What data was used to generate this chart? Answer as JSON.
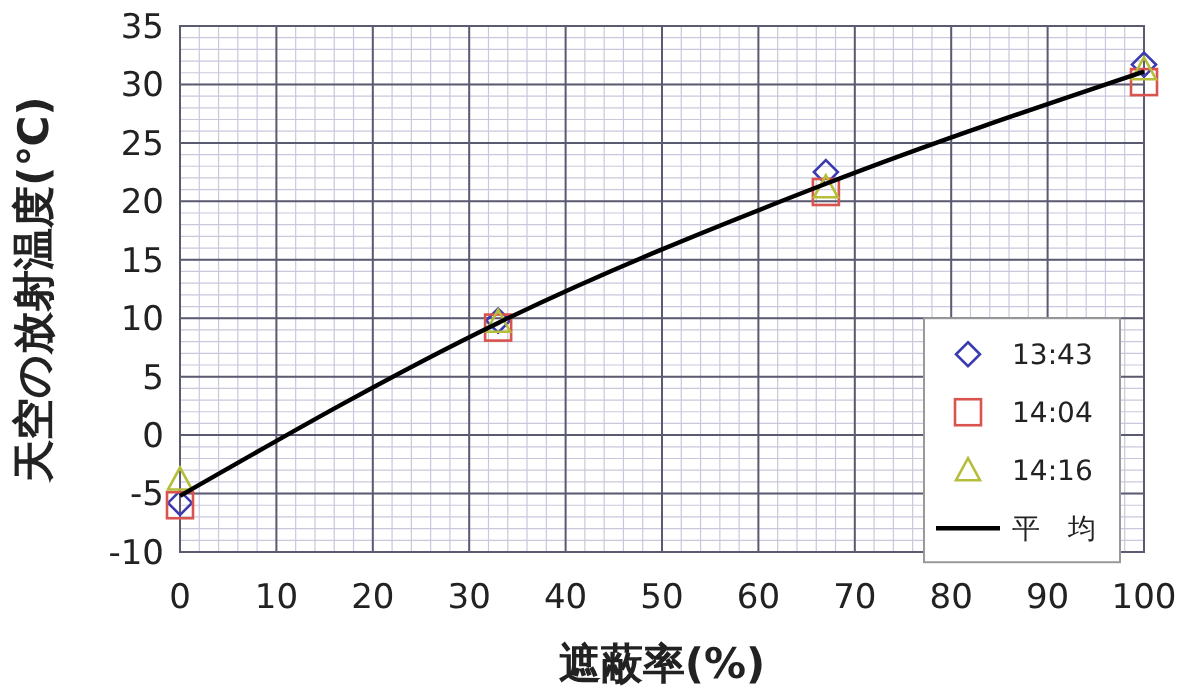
{
  "chart_data": {
    "type": "scatter",
    "xlabel": "遮蔽率(%)",
    "ylabel": "天空の放射温度(℃)",
    "x": [
      0,
      33,
      67,
      100
    ],
    "series": [
      {
        "name": "13:43",
        "color": "#3b3bb0",
        "marker": "diamond",
        "values": [
          -5.8,
          9.8,
          22.5,
          31.7
        ]
      },
      {
        "name": "14:04",
        "color": "#d9534f",
        "marker": "square",
        "values": [
          -6,
          9.2,
          20.8,
          30.2
        ]
      },
      {
        "name": "14:16",
        "color": "#b5bd3a",
        "marker": "triangle",
        "values": [
          -3.8,
          9.7,
          21.2,
          31.3
        ]
      },
      {
        "name": "平　均",
        "type": "line",
        "color": "#000000",
        "marker": "none",
        "line_style": "solid",
        "values": [
          -5.2,
          9.6,
          21.5,
          31.1
        ]
      }
    ],
    "xlim": [
      0,
      100
    ],
    "xticks": [
      0,
      10,
      20,
      30,
      40,
      50,
      60,
      70,
      80,
      90,
      100
    ],
    "ylim": [
      -10,
      35
    ],
    "yticks": [
      -10,
      -5,
      0,
      5,
      10,
      15,
      20,
      25,
      30,
      35
    ],
    "grid": true,
    "legend": "right"
  }
}
